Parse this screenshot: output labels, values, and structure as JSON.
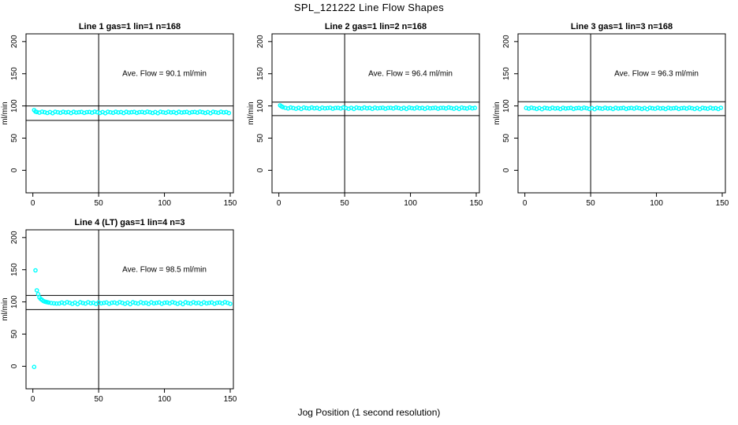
{
  "figure": {
    "title": "SPL_121222  Line Flow Shapes",
    "xlabel": "Jog Position (1 second resolution)",
    "point_color": "#00ffff",
    "axis_color": "#000000",
    "background": "#ffffff"
  },
  "chart_data": [
    {
      "type": "scatter",
      "title": "Line 1 gas=1 lin=1 n=168",
      "ylabel": "ml/min",
      "annotation": "Ave. Flow =  90.1  ml/min",
      "ave_flow_ml_min": 90.1,
      "annotation_pos": [
        100,
        150
      ],
      "xlim": [
        -5.2,
        152.4
      ],
      "ylim": [
        -35,
        212
      ],
      "xticks": [
        0,
        50,
        100,
        150
      ],
      "yticks": [
        0,
        50,
        100,
        150,
        200
      ],
      "vline_x": 50,
      "hlines": [
        100,
        77.5
      ],
      "x": [
        1,
        2,
        3,
        5,
        7,
        9,
        11,
        13,
        15,
        17,
        19,
        21,
        23,
        25,
        27,
        29,
        31,
        33,
        35,
        37,
        39,
        41,
        43,
        45,
        47,
        49,
        51,
        53,
        55,
        57,
        59,
        61,
        63,
        65,
        67,
        69,
        71,
        73,
        75,
        77,
        79,
        81,
        83,
        85,
        87,
        89,
        91,
        93,
        95,
        97,
        99,
        101,
        103,
        105,
        107,
        109,
        111,
        113,
        115,
        117,
        119,
        121,
        123,
        125,
        127,
        129,
        131,
        133,
        135,
        137,
        139,
        141,
        143,
        145,
        147,
        149
      ],
      "y": [
        93.5,
        91.2,
        90.6,
        89.6,
        91.1,
        90.2,
        89.1,
        90.5,
        88.8,
        90.9,
        90.1,
        89.4,
        91.0,
        89.8,
        90.4,
        89.0,
        90.8,
        89.7,
        90.2,
        90.7,
        89.2,
        90.3,
        90.6,
        89.6,
        91.1,
        90.2,
        89.1,
        90.5,
        88.8,
        90.9,
        90.1,
        89.4,
        91.0,
        89.8,
        90.4,
        89.0,
        90.8,
        89.7,
        90.2,
        90.7,
        89.2,
        90.3,
        90.6,
        89.6,
        91.1,
        90.2,
        89.1,
        90.5,
        88.8,
        90.9,
        90.1,
        89.4,
        91.0,
        89.8,
        90.4,
        89.0,
        90.8,
        89.7,
        90.2,
        90.7,
        89.2,
        90.3,
        90.6,
        89.6,
        91.1,
        90.2,
        89.1,
        90.5,
        88.8,
        90.9,
        90.1,
        89.4,
        91.0,
        89.8,
        90.4,
        89.0
      ]
    },
    {
      "type": "scatter",
      "title": "Line 2 gas=1 lin=2 n=168",
      "ylabel": "ml/min",
      "annotation": "Ave. Flow =  96.4  ml/min",
      "ave_flow_ml_min": 96.4,
      "annotation_pos": [
        100,
        150
      ],
      "xlim": [
        -5.2,
        152.4
      ],
      "ylim": [
        -35,
        212
      ],
      "xticks": [
        0,
        50,
        100,
        150
      ],
      "yticks": [
        0,
        50,
        100,
        150,
        200
      ],
      "vline_x": 50,
      "hlines": [
        106,
        85
      ],
      "x": [
        1,
        2,
        3,
        5,
        7,
        9,
        11,
        13,
        15,
        17,
        19,
        21,
        23,
        25,
        27,
        29,
        31,
        33,
        35,
        37,
        39,
        41,
        43,
        45,
        47,
        49,
        51,
        53,
        55,
        57,
        59,
        61,
        63,
        65,
        67,
        69,
        71,
        73,
        75,
        77,
        79,
        81,
        83,
        85,
        87,
        89,
        91,
        93,
        95,
        97,
        99,
        101,
        103,
        105,
        107,
        109,
        111,
        113,
        115,
        117,
        119,
        121,
        123,
        125,
        127,
        129,
        131,
        133,
        135,
        137,
        139,
        141,
        143,
        145,
        147,
        149
      ],
      "y": [
        100.8,
        99.3,
        98.2,
        97.1,
        96.1,
        97.6,
        96.7,
        95.6,
        97.0,
        95.3,
        97.4,
        96.6,
        95.9,
        97.5,
        96.3,
        96.9,
        95.5,
        97.3,
        96.2,
        96.7,
        97.2,
        95.7,
        96.8,
        97.1,
        96.1,
        97.6,
        96.7,
        95.6,
        97.0,
        95.3,
        97.4,
        96.6,
        95.9,
        97.5,
        96.3,
        96.9,
        95.5,
        97.3,
        96.2,
        96.7,
        97.2,
        95.7,
        96.8,
        97.1,
        96.1,
        97.6,
        96.7,
        95.6,
        97.0,
        95.3,
        97.4,
        96.6,
        95.9,
        97.5,
        96.3,
        96.9,
        95.5,
        97.3,
        96.2,
        96.7,
        97.2,
        95.7,
        96.8,
        97.1,
        96.1,
        97.6,
        96.7,
        95.6,
        97.0,
        95.3,
        97.4,
        96.6,
        95.9,
        97.5,
        96.3,
        96.9
      ]
    },
    {
      "type": "scatter",
      "title": "Line 3 gas=1 lin=3 n=168",
      "ylabel": "ml/min",
      "annotation": "Ave. Flow =  96.3  ml/min",
      "ave_flow_ml_min": 96.3,
      "annotation_pos": [
        100,
        150
      ],
      "xlim": [
        -5.2,
        152.4
      ],
      "ylim": [
        -35,
        212
      ],
      "xticks": [
        0,
        50,
        100,
        150
      ],
      "yticks": [
        0,
        50,
        100,
        150,
        200
      ],
      "vline_x": 50,
      "hlines": [
        106.5,
        85
      ],
      "x": [
        1,
        3,
        5,
        7,
        9,
        11,
        13,
        15,
        17,
        19,
        21,
        23,
        25,
        27,
        29,
        31,
        33,
        35,
        37,
        39,
        41,
        43,
        45,
        47,
        49,
        51,
        53,
        55,
        57,
        59,
        61,
        63,
        65,
        67,
        69,
        71,
        73,
        75,
        77,
        79,
        81,
        83,
        85,
        87,
        89,
        91,
        93,
        95,
        97,
        99,
        101,
        103,
        105,
        107,
        109,
        111,
        113,
        115,
        117,
        119,
        121,
        123,
        125,
        127,
        129,
        131,
        133,
        135,
        137,
        139,
        141,
        143,
        145,
        147,
        149
      ],
      "y": [
        96.8,
        95.8,
        97.3,
        96.4,
        95.3,
        96.7,
        95.0,
        97.1,
        96.3,
        95.6,
        97.2,
        96.0,
        96.6,
        95.2,
        97.0,
        95.9,
        96.4,
        96.9,
        95.4,
        96.5,
        96.8,
        95.8,
        97.3,
        96.4,
        95.3,
        96.7,
        95.0,
        97.1,
        96.3,
        95.6,
        97.2,
        96.0,
        96.6,
        95.2,
        97.0,
        95.9,
        96.4,
        96.9,
        95.4,
        96.5,
        96.8,
        95.8,
        97.3,
        96.4,
        95.3,
        96.7,
        95.0,
        97.1,
        96.3,
        95.6,
        97.2,
        96.0,
        96.6,
        95.2,
        97.0,
        95.9,
        96.4,
        96.9,
        95.4,
        96.5,
        96.8,
        95.8,
        97.3,
        96.4,
        95.3,
        96.7,
        95.0,
        97.1,
        96.3,
        95.6,
        97.2,
        96.0,
        96.6,
        95.2,
        97.0
      ]
    },
    {
      "type": "scatter",
      "title": "Line 4 (LT) gas=1 lin=4 n=3",
      "ylabel": "ml/min",
      "annotation": "Ave. Flow =  98.5  ml/min",
      "ave_flow_ml_min": 98.5,
      "annotation_pos": [
        100,
        150
      ],
      "xlim": [
        -5.2,
        152.4
      ],
      "ylim": [
        -35,
        212
      ],
      "xticks": [
        0,
        50,
        100,
        150
      ],
      "yticks": [
        0,
        50,
        100,
        150,
        200
      ],
      "vline_x": 50,
      "hlines": [
        110,
        88
      ],
      "x": [
        1,
        2,
        3,
        4,
        5,
        6,
        7,
        8,
        9,
        10,
        11,
        12,
        14,
        16,
        18,
        20,
        22,
        24,
        26,
        28,
        30,
        32,
        34,
        36,
        38,
        40,
        42,
        44,
        46,
        48,
        50,
        52,
        54,
        56,
        58,
        60,
        62,
        64,
        66,
        68,
        70,
        72,
        74,
        76,
        78,
        80,
        82,
        84,
        86,
        88,
        90,
        92,
        94,
        96,
        98,
        100,
        102,
        104,
        106,
        108,
        110,
        112,
        114,
        116,
        118,
        120,
        122,
        124,
        126,
        128,
        130,
        132,
        134,
        136,
        138,
        140,
        142,
        144,
        146,
        148,
        150
      ],
      "y": [
        -1,
        149,
        118,
        112,
        107,
        104.5,
        103,
        101.5,
        100.5,
        100,
        99.5,
        99,
        98.3,
        97.8,
        97.4,
        97.6,
        99.0,
        97.7,
        99.6,
        98.5,
        97.0,
        98.9,
        96.6,
        99.4,
        98.3,
        97.4,
        99.5,
        97.9,
        98.7,
        96.9,
        99.2,
        97.8,
        98.5,
        99.1,
        97.2,
        98.6,
        99.0,
        97.7,
        99.6,
        98.5,
        97.0,
        98.9,
        96.6,
        99.4,
        98.3,
        97.4,
        99.5,
        97.9,
        98.7,
        96.9,
        99.2,
        97.8,
        98.5,
        99.1,
        97.2,
        98.6,
        99.0,
        97.7,
        99.6,
        98.5,
        97.0,
        98.9,
        96.6,
        99.4,
        98.3,
        97.4,
        99.5,
        97.9,
        98.7,
        96.9,
        99.2,
        97.8,
        98.5,
        99.1,
        97.2,
        98.6,
        99.0,
        97.7,
        99.6,
        98.5,
        97.0
      ]
    }
  ]
}
